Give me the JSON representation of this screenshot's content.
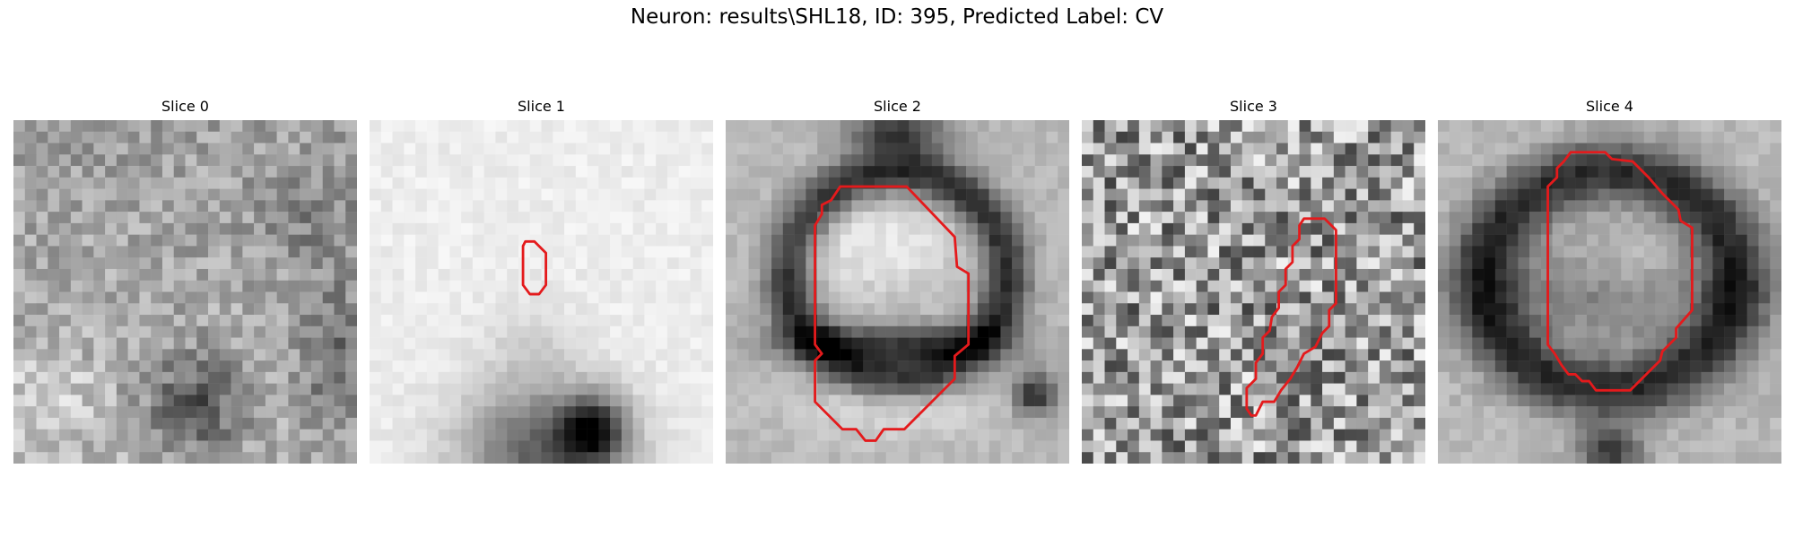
{
  "figure": {
    "title": "Neuron: results\\SHL18, ID: 395, Predicted Label: CV",
    "panels": [
      {
        "label": "Slice 0"
      },
      {
        "label": "Slice 1"
      },
      {
        "label": "Slice 2"
      },
      {
        "label": "Slice 3"
      },
      {
        "label": "Slice 4"
      }
    ],
    "contour_color": "#e41a1c"
  }
}
